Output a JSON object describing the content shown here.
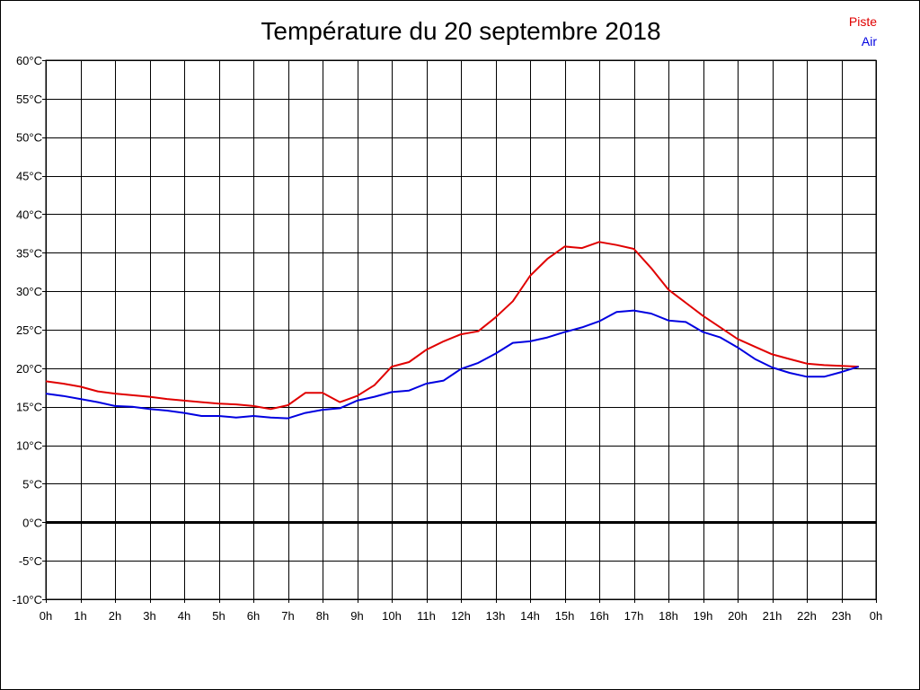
{
  "chart_data": {
    "type": "line",
    "title": "Température du 20 septembre 2018",
    "xlabel": "",
    "ylabel": "",
    "ylim": [
      -10,
      60
    ],
    "yticks": [
      "60°C",
      "55°C",
      "50°C",
      "45°C",
      "40°C",
      "35°C",
      "30°C",
      "25°C",
      "20°C",
      "15°C",
      "10°C",
      "5°C",
      "0°C",
      "-5°C",
      "-10°C"
    ],
    "xticks": [
      "0h",
      "1h",
      "2h",
      "3h",
      "4h",
      "5h",
      "6h",
      "7h",
      "8h",
      "9h",
      "10h",
      "11h",
      "12h",
      "13h",
      "14h",
      "15h",
      "16h",
      "17h",
      "18h",
      "19h",
      "20h",
      "21h",
      "22h",
      "23h",
      "0h"
    ],
    "grid": true,
    "legend_position": "top-right",
    "x": [
      0,
      0.5,
      1,
      1.5,
      2,
      2.5,
      3,
      3.5,
      4,
      4.5,
      5,
      5.5,
      6,
      6.5,
      7,
      7.5,
      8,
      8.5,
      9,
      9.5,
      10,
      10.5,
      11,
      11.5,
      12,
      12.5,
      13,
      13.5,
      14,
      14.5,
      15,
      15.5,
      16,
      16.5,
      17,
      17.5,
      18,
      18.5,
      19,
      19.5,
      20,
      20.5,
      21,
      21.5,
      22,
      22.5,
      23,
      23.5
    ],
    "series": [
      {
        "name": "Piste",
        "color": "#e00000",
        "values": [
          18.3,
          18.0,
          17.6,
          17.0,
          16.7,
          16.5,
          16.3,
          16.0,
          15.8,
          15.6,
          15.4,
          15.3,
          15.1,
          14.7,
          15.2,
          16.8,
          16.8,
          15.6,
          16.4,
          17.8,
          20.2,
          20.8,
          22.4,
          23.5,
          24.4,
          24.8,
          26.6,
          28.7,
          32.0,
          34.2,
          35.8,
          35.6,
          36.4,
          36.0,
          35.5,
          33.0,
          30.2,
          28.5,
          26.8,
          25.3,
          23.8,
          22.8,
          21.8,
          21.2,
          20.6,
          20.4,
          20.3,
          20.2
        ]
      },
      {
        "name": "Air",
        "color": "#0000e0",
        "values": [
          16.7,
          16.4,
          16.0,
          15.6,
          15.1,
          15.0,
          14.7,
          14.5,
          14.2,
          13.8,
          13.8,
          13.6,
          13.8,
          13.6,
          13.5,
          14.2,
          14.6,
          14.8,
          15.8,
          16.3,
          16.9,
          17.1,
          18.0,
          18.4,
          19.9,
          20.7,
          21.9,
          23.3,
          23.5,
          24.0,
          24.7,
          25.3,
          26.1,
          27.3,
          27.5,
          27.1,
          26.2,
          26.0,
          24.7,
          24.0,
          22.7,
          21.2,
          20.1,
          19.4,
          18.9,
          18.9,
          19.5,
          20.2
        ]
      }
    ]
  }
}
